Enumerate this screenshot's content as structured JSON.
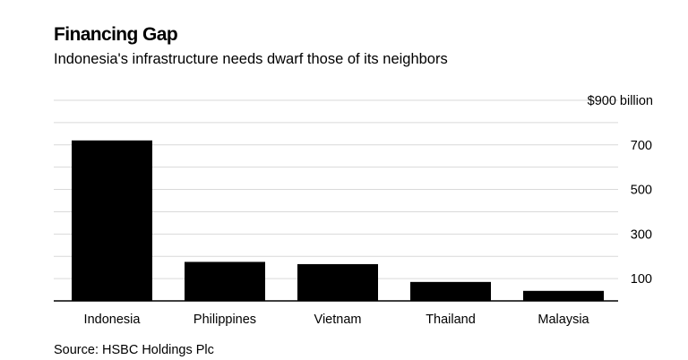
{
  "chart_data": {
    "type": "bar",
    "title": "Financing Gap",
    "subtitle": "Indonesia's infrastructure needs dwarf those of its neighbors",
    "source": "Source: HSBC Holdings Plc",
    "categories": [
      "Indonesia",
      "Philippines",
      "Vietnam",
      "Thailand",
      "Malaysia"
    ],
    "values": [
      720,
      175,
      165,
      85,
      45
    ],
    "unit": "billion",
    "xlabel": "",
    "ylabel": "",
    "ylim": [
      0,
      900
    ],
    "y_ticks": [
      {
        "value": 100,
        "label": "100"
      },
      {
        "value": 300,
        "label": "300"
      },
      {
        "value": 500,
        "label": "500"
      },
      {
        "value": 700,
        "label": "700"
      },
      {
        "value": 900,
        "label": "$900 billion"
      }
    ],
    "minor_gridlines": [
      200,
      400,
      600,
      800
    ],
    "grid": true,
    "y_axis_position": "right",
    "bar_color": "#000000",
    "grid_color": "#d9d9d9"
  }
}
